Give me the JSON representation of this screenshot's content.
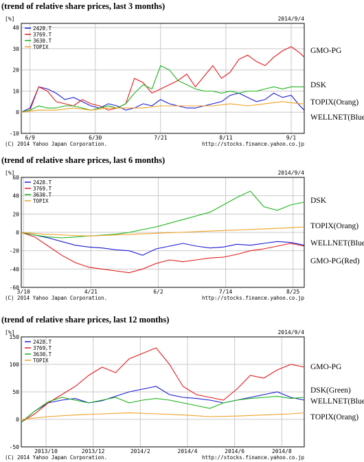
{
  "chart_data": [
    {
      "type": "line",
      "heading": "(trend of relative share prices, last 3 months)",
      "date": "2014/9/4",
      "yunit": "[%]",
      "yticks": [
        -10,
        0,
        10,
        20,
        30,
        40
      ],
      "ylim": [
        -10,
        42
      ],
      "xlim": [
        0,
        65
      ],
      "xtick_labels": [
        {
          "pos": 2,
          "label": "6/9"
        },
        {
          "pos": 17,
          "label": "6/30"
        },
        {
          "pos": 32,
          "label": "7/21"
        },
        {
          "pos": 47,
          "label": "8/11"
        },
        {
          "pos": 62,
          "label": "9/1"
        }
      ],
      "legend": [
        "2428.T",
        "3769.T",
        "3630.T",
        "TOPIX"
      ],
      "copyright": "(C) 2014 Yahoo Japan Corporation.",
      "source": "http://stocks.finance.yahoo.co.jp",
      "series": [
        {
          "name": "2428.T",
          "color": "#1a1ad4",
          "x": [
            0,
            2,
            4,
            6,
            8,
            10,
            12,
            14,
            16,
            18,
            20,
            22,
            24,
            26,
            28,
            30,
            32,
            34,
            36,
            38,
            40,
            42,
            44,
            46,
            48,
            50,
            52,
            54,
            56,
            58,
            60,
            62,
            64,
            65
          ],
          "values": [
            0,
            2,
            12,
            11,
            9,
            6,
            7,
            5,
            3,
            2,
            4,
            3,
            1,
            2,
            4,
            3,
            6,
            4,
            3,
            2,
            2,
            3,
            4,
            5,
            8,
            9,
            7,
            5,
            6,
            9,
            7,
            8,
            3,
            1
          ]
        },
        {
          "name": "3769.T",
          "color": "#e41a1a",
          "x": [
            0,
            2,
            4,
            6,
            8,
            10,
            12,
            14,
            16,
            18,
            20,
            22,
            24,
            26,
            28,
            30,
            32,
            34,
            36,
            38,
            40,
            42,
            44,
            46,
            48,
            50,
            52,
            54,
            56,
            58,
            60,
            62,
            64,
            65
          ],
          "values": [
            0,
            1,
            12,
            10,
            5,
            4,
            3,
            6,
            4,
            3,
            1,
            2,
            4,
            16,
            14,
            9,
            11,
            13,
            15,
            18,
            12,
            17,
            22,
            16,
            19,
            25,
            27,
            24,
            22,
            26,
            29,
            31,
            28,
            26
          ]
        },
        {
          "name": "3630.T",
          "color": "#1ab41a",
          "x": [
            0,
            2,
            4,
            6,
            8,
            10,
            12,
            14,
            16,
            18,
            20,
            22,
            24,
            26,
            28,
            30,
            32,
            34,
            36,
            38,
            40,
            42,
            44,
            46,
            48,
            50,
            52,
            54,
            56,
            58,
            60,
            62,
            64,
            65
          ],
          "values": [
            0,
            1,
            3,
            2,
            2,
            3,
            3,
            2,
            1,
            2,
            3,
            2,
            4,
            9,
            13,
            11,
            22,
            20,
            15,
            13,
            11,
            10,
            10,
            9,
            10,
            9,
            10,
            10,
            11,
            12,
            11,
            12,
            12,
            12
          ]
        },
        {
          "name": "TOPIX",
          "color": "#f0a020",
          "x": [
            0,
            4,
            8,
            12,
            16,
            20,
            24,
            28,
            32,
            36,
            40,
            44,
            48,
            52,
            56,
            60,
            64,
            65
          ],
          "values": [
            0,
            1,
            1,
            2,
            1,
            2,
            2,
            2,
            3,
            3,
            3,
            3,
            4,
            3,
            4,
            5,
            4,
            4
          ]
        }
      ],
      "annotations": [
        "GMO-PG",
        "DSK",
        "TOPIX(Orang)",
        "WELLNET(Blue)"
      ]
    },
    {
      "type": "line",
      "heading": "(trend of relative share prices, last 6 months)",
      "date": "2014/9/4",
      "yunit": "[%]",
      "yticks": [
        -60,
        -40,
        -20,
        0,
        20,
        40,
        60
      ],
      "ylim": [
        -60,
        60
      ],
      "xlim": [
        0,
        126
      ],
      "xtick_labels": [
        {
          "pos": 1,
          "label": "3/10"
        },
        {
          "pos": 31,
          "label": "4/21"
        },
        {
          "pos": 61,
          "label": "6/2"
        },
        {
          "pos": 91,
          "label": "7/14"
        },
        {
          "pos": 121,
          "label": "8/25"
        }
      ],
      "legend": [
        "2428.T",
        "3769.T",
        "3630.T",
        "TOPIX"
      ],
      "copyright": "(C) 2014 Yahoo Japan Corporation.",
      "source": "http://stocks.finance.yahoo.co.jp",
      "series": [
        {
          "name": "2428.T",
          "color": "#1a1ad4",
          "x": [
            0,
            6,
            12,
            18,
            24,
            30,
            36,
            42,
            48,
            54,
            60,
            66,
            72,
            78,
            84,
            90,
            96,
            102,
            108,
            114,
            120,
            126
          ],
          "values": [
            0,
            -3,
            -6,
            -10,
            -14,
            -16,
            -17,
            -19,
            -20,
            -25,
            -18,
            -15,
            -12,
            -15,
            -17,
            -16,
            -13,
            -14,
            -12,
            -10,
            -11,
            -14
          ]
        },
        {
          "name": "3769.T",
          "color": "#e41a1a",
          "x": [
            0,
            6,
            12,
            18,
            24,
            30,
            36,
            42,
            48,
            54,
            60,
            66,
            72,
            78,
            84,
            90,
            96,
            102,
            108,
            114,
            120,
            126
          ],
          "values": [
            0,
            -5,
            -15,
            -25,
            -33,
            -38,
            -40,
            -42,
            -44,
            -40,
            -34,
            -30,
            -32,
            -30,
            -28,
            -27,
            -24,
            -20,
            -18,
            -15,
            -12,
            -15
          ]
        },
        {
          "name": "3630.T",
          "color": "#1ab41a",
          "x": [
            0,
            6,
            12,
            18,
            24,
            30,
            36,
            42,
            48,
            54,
            60,
            66,
            72,
            78,
            84,
            90,
            96,
            102,
            108,
            114,
            120,
            126
          ],
          "values": [
            0,
            -3,
            -5,
            -6,
            -5,
            -4,
            -3,
            -2,
            0,
            3,
            6,
            10,
            14,
            18,
            22,
            30,
            38,
            45,
            28,
            24,
            30,
            33
          ]
        },
        {
          "name": "TOPIX",
          "color": "#f0a020",
          "x": [
            0,
            10,
            20,
            30,
            40,
            50,
            60,
            70,
            80,
            90,
            100,
            110,
            120,
            126
          ],
          "values": [
            0,
            -2,
            -3,
            -4,
            -3,
            -2,
            -1,
            0,
            1,
            2,
            3,
            4,
            5,
            6
          ]
        }
      ],
      "annotations": [
        "DSK",
        "TOPIX(Orang)",
        "WELLNET(Blue)",
        "GMO-PG(Red)"
      ]
    },
    {
      "type": "line",
      "heading": "(trend of relative share prices, last 12 months)",
      "date": "2014/9/4",
      "yunit": "[%]",
      "yticks": [
        -50,
        0,
        50,
        100,
        150
      ],
      "ylim": [
        -50,
        150
      ],
      "xlim": [
        0,
        252
      ],
      "xtick_labels": [
        {
          "pos": 22,
          "label": "2013/10"
        },
        {
          "pos": 64,
          "label": "2013/12"
        },
        {
          "pos": 106,
          "label": "2014/2"
        },
        {
          "pos": 148,
          "label": "2014/4"
        },
        {
          "pos": 190,
          "label": "2014/6"
        },
        {
          "pos": 232,
          "label": "2014/8"
        }
      ],
      "legend": [
        "2428.T",
        "3769.T",
        "3630.T",
        "TOPIX"
      ],
      "copyright": "(C) 2014 Yahoo Japan Corporation.",
      "source": "http://stocks.finance.yahoo.co.jp",
      "series": [
        {
          "name": "2428.T",
          "color": "#1a1ad4",
          "x": [
            0,
            12,
            24,
            36,
            48,
            60,
            72,
            84,
            96,
            108,
            120,
            132,
            144,
            156,
            168,
            180,
            192,
            204,
            216,
            228,
            240,
            252
          ],
          "values": [
            -5,
            15,
            30,
            35,
            38,
            30,
            34,
            42,
            50,
            55,
            60,
            45,
            40,
            38,
            35,
            30,
            35,
            40,
            45,
            50,
            40,
            35
          ]
        },
        {
          "name": "3769.T",
          "color": "#e41a1a",
          "x": [
            0,
            12,
            24,
            36,
            48,
            60,
            72,
            84,
            96,
            108,
            120,
            132,
            144,
            156,
            168,
            180,
            192,
            204,
            216,
            228,
            240,
            252
          ],
          "values": [
            -5,
            10,
            30,
            45,
            60,
            80,
            95,
            85,
            110,
            120,
            130,
            100,
            60,
            45,
            40,
            35,
            55,
            80,
            75,
            90,
            100,
            95
          ]
        },
        {
          "name": "3630.T",
          "color": "#1ab41a",
          "x": [
            0,
            12,
            24,
            36,
            48,
            60,
            72,
            84,
            96,
            108,
            120,
            132,
            144,
            156,
            168,
            180,
            192,
            204,
            216,
            228,
            240,
            252
          ],
          "values": [
            -5,
            15,
            32,
            40,
            35,
            30,
            35,
            40,
            30,
            35,
            38,
            35,
            30,
            25,
            20,
            30,
            35,
            38,
            40,
            42,
            38,
            40
          ]
        },
        {
          "name": "TOPIX",
          "color": "#f0a020",
          "x": [
            0,
            24,
            48,
            72,
            96,
            120,
            144,
            168,
            192,
            216,
            240,
            252
          ],
          "values": [
            0,
            5,
            8,
            10,
            12,
            10,
            8,
            5,
            6,
            8,
            10,
            12
          ]
        }
      ],
      "annotations": [
        "GMO-PG",
        "DSK(Green)",
        "WELLNET(Blue)",
        "TOPIX(Orang)"
      ]
    }
  ]
}
